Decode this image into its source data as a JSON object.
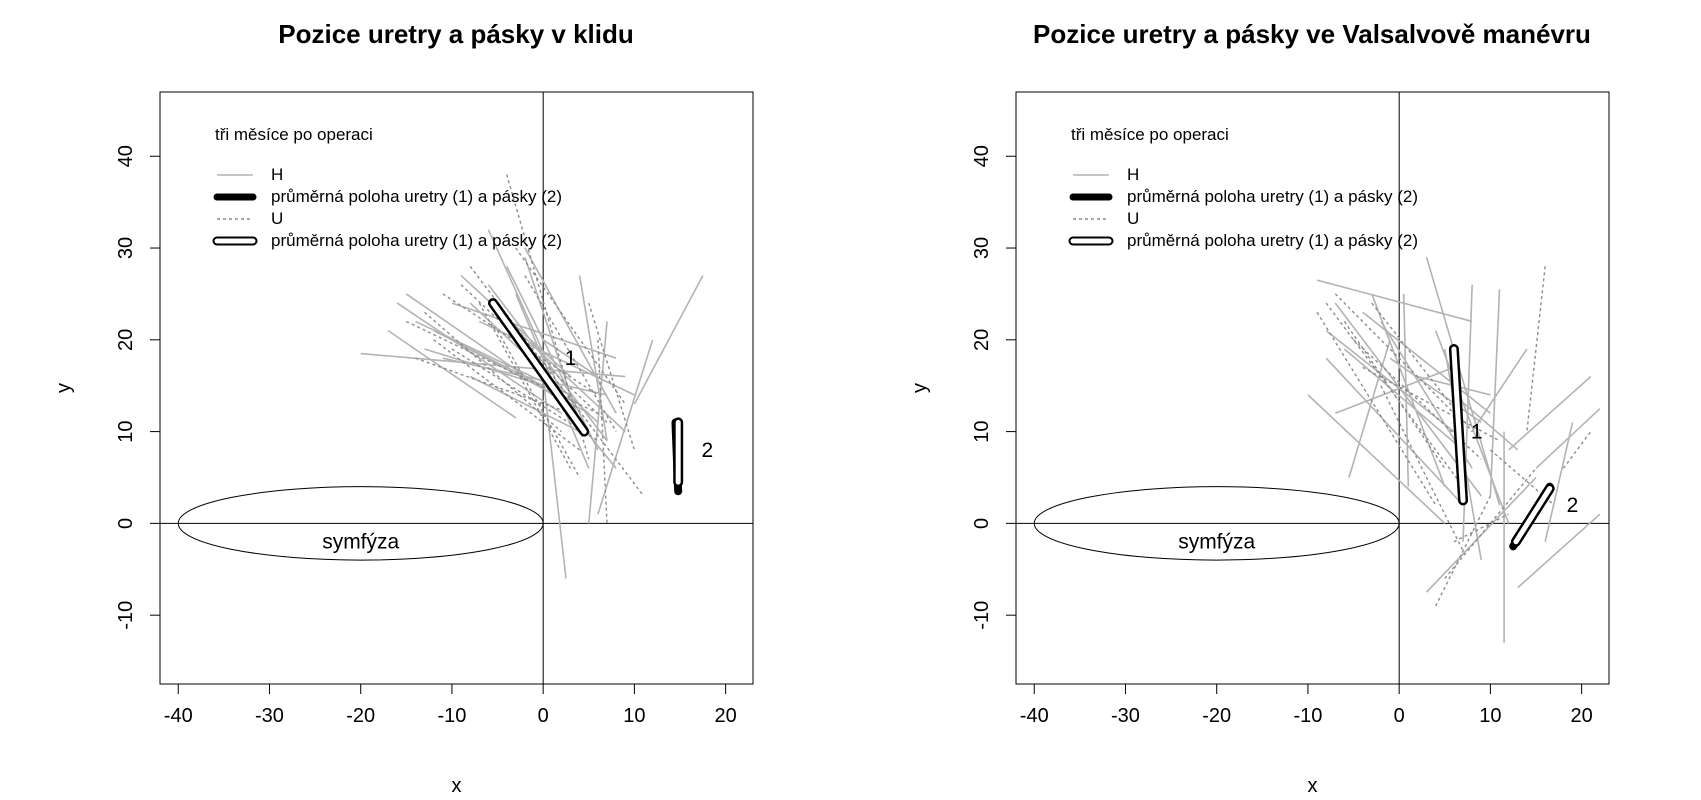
{
  "chart_data": [
    {
      "type": "line",
      "title": "Pozice uretry a pásky v klidu",
      "xlabel": "x",
      "ylabel": "y",
      "xlim": [
        -42,
        23
      ],
      "ylim": [
        -17.5,
        47
      ],
      "xticks": [
        -40,
        -30,
        -20,
        -10,
        0,
        10,
        20
      ],
      "yticks": [
        -10,
        0,
        10,
        20,
        30,
        40
      ],
      "grid": false,
      "legend": {
        "placement": "top-left",
        "header": "tři měsíce po operaci",
        "entries": [
          {
            "label": "H",
            "style": "thin-grey"
          },
          {
            "label": "průměrná poloha uretry (1) a pásky (2)",
            "style": "thick-black"
          },
          {
            "label": "U",
            "style": "dotted-grey"
          },
          {
            "label": "průměrná poloha uretry (1) a pásky (2)",
            "style": "outlined"
          }
        ]
      },
      "series": [
        {
          "name": "H",
          "style": "thin-grey",
          "segments": [
            [
              [
                -12,
                21
              ],
              [
                4,
                13
              ]
            ],
            [
              [
                -10,
                20
              ],
              [
                5,
                12
              ]
            ],
            [
              [
                -8,
                24
              ],
              [
                6,
                11
              ]
            ],
            [
              [
                -14,
                22
              ],
              [
                3,
                14
              ]
            ],
            [
              [
                -6,
                26
              ],
              [
                7,
                9
              ]
            ],
            [
              [
                -4,
                28
              ],
              [
                6,
                8
              ]
            ],
            [
              [
                -2,
                30
              ],
              [
                8,
                12
              ]
            ],
            [
              [
                -16,
                24
              ],
              [
                2,
                12
              ]
            ],
            [
              [
                -11,
                18
              ],
              [
                7,
                14
              ]
            ],
            [
              [
                -8,
                16
              ],
              [
                4,
                10
              ]
            ],
            [
              [
                -13,
                19
              ],
              [
                0,
                15
              ]
            ],
            [
              [
                -5,
                23
              ],
              [
                9,
                10
              ]
            ],
            [
              [
                -3,
                25
              ],
              [
                5,
                6
              ]
            ],
            [
              [
                -9,
                27
              ],
              [
                3,
                16
              ]
            ],
            [
              [
                -7,
                22
              ],
              [
                10,
                14
              ]
            ],
            [
              [
                -20,
                18.5
              ],
              [
                9,
                16
              ]
            ],
            [
              [
                -17,
                21
              ],
              [
                -3,
                11.5
              ]
            ],
            [
              [
                0,
                16
              ],
              [
                2.5,
                -6
              ]
            ],
            [
              [
                -1,
                17
              ],
              [
                8,
                6
              ]
            ],
            [
              [
                4,
                27
              ],
              [
                7,
                9
              ]
            ],
            [
              [
                7,
                22
              ],
              [
                5,
                0
              ]
            ],
            [
              [
                12,
                20
              ],
              [
                6,
                1
              ]
            ],
            [
              [
                17.5,
                27
              ],
              [
                10,
                13
              ]
            ],
            [
              [
                -2,
                29
              ],
              [
                4,
                11
              ]
            ],
            [
              [
                -15,
                25
              ],
              [
                1,
                14
              ]
            ],
            [
              [
                -6,
                32
              ],
              [
                3,
                12
              ]
            ],
            [
              [
                0,
                20
              ],
              [
                6,
                16
              ]
            ],
            [
              [
                -10,
                24
              ],
              [
                8,
                18
              ]
            ]
          ]
        },
        {
          "name": "U",
          "style": "dotted-grey",
          "segments": [
            [
              [
                -15,
                22
              ],
              [
                6,
                12
              ]
            ],
            [
              [
                -12,
                20
              ],
              [
                4,
                8
              ]
            ],
            [
              [
                -4,
                38
              ],
              [
                5,
                7
              ]
            ],
            [
              [
                -9,
                26
              ],
              [
                7,
                11
              ]
            ],
            [
              [
                -7,
                24
              ],
              [
                3,
                6
              ]
            ],
            [
              [
                -3,
                30
              ],
              [
                9,
                13
              ]
            ],
            [
              [
                -13,
                23
              ],
              [
                2,
                10
              ]
            ],
            [
              [
                -10,
                19
              ],
              [
                6,
                9
              ]
            ],
            [
              [
                6,
                20
              ],
              [
                7,
                0
              ]
            ],
            [
              [
                -2,
                27
              ],
              [
                8,
                10
              ]
            ],
            [
              [
                -5,
                21
              ],
              [
                4,
                5
              ]
            ],
            [
              [
                -11,
                25
              ],
              [
                6,
                14
              ]
            ],
            [
              [
                5,
                24
              ],
              [
                10,
                8
              ]
            ],
            [
              [
                -14,
                18
              ],
              [
                3,
                12
              ]
            ],
            [
              [
                -8,
                28
              ],
              [
                11,
                3
              ]
            ]
          ]
        },
        {
          "name": "H",
          "style": "thick-black",
          "segments": [
            [
              [
                -5.5,
                24
              ],
              [
                4.5,
                10
              ]
            ],
            [
              [
                14.5,
                11
              ],
              [
                14.8,
                3.5
              ]
            ]
          ]
        },
        {
          "name": "U",
          "style": "outlined",
          "segments": [
            [
              [
                -5.5,
                24
              ],
              [
                4.5,
                10
              ]
            ],
            [
              [
                14.8,
                11
              ],
              [
                14.8,
                4.5
              ]
            ]
          ]
        }
      ],
      "annotations": [
        {
          "text": "1",
          "x": 3,
          "y": 18
        },
        {
          "text": "2",
          "x": 18,
          "y": 8
        },
        {
          "text": "symfýza",
          "x": -20,
          "y": -2
        }
      ],
      "symphysis": {
        "center": [
          -20,
          0
        ],
        "rx": 20,
        "ry": 4
      }
    },
    {
      "type": "line",
      "title": "Pozice uretry a pásky ve Valsalvově manévru",
      "xlabel": "x",
      "ylabel": "y",
      "xlim": [
        -42,
        23
      ],
      "ylim": [
        -17.5,
        47
      ],
      "xticks": [
        -40,
        -30,
        -20,
        -10,
        0,
        10,
        20
      ],
      "yticks": [
        -10,
        0,
        10,
        20,
        30,
        40
      ],
      "grid": false,
      "legend": {
        "placement": "top-left",
        "header": "tři měsíce po operaci",
        "entries": [
          {
            "label": "H",
            "style": "thin-grey"
          },
          {
            "label": "průměrná poloha uretry (1) a pásky (2)",
            "style": "thick-black"
          },
          {
            "label": "U",
            "style": "dotted-grey"
          },
          {
            "label": "průměrná poloha uretry (1) a pásky (2)",
            "style": "outlined"
          }
        ]
      },
      "series": [
        {
          "name": "H",
          "style": "thin-grey",
          "segments": [
            [
              [
                -9,
                26.5
              ],
              [
                8,
                22
              ]
            ],
            [
              [
                -8,
                21
              ],
              [
                6,
                10
              ]
            ],
            [
              [
                -7,
                24
              ],
              [
                9,
                3
              ]
            ],
            [
              [
                -5.5,
                5
              ],
              [
                -1,
                20
              ]
            ],
            [
              [
                -6,
                19
              ],
              [
                7,
                8
              ]
            ],
            [
              [
                -3,
                25
              ],
              [
                5,
                4
              ]
            ],
            [
              [
                -4,
                23
              ],
              [
                10,
                12
              ]
            ],
            [
              [
                -2,
                22
              ],
              [
                8,
                6
              ]
            ],
            [
              [
                0.5,
                25
              ],
              [
                1,
                4
              ]
            ],
            [
              [
                3,
                29
              ],
              [
                11,
                2
              ]
            ],
            [
              [
                5,
                19
              ],
              [
                9,
                -4
              ]
            ],
            [
              [
                4,
                21
              ],
              [
                12,
                0
              ]
            ],
            [
              [
                8,
                26
              ],
              [
                7,
                -2
              ]
            ],
            [
              [
                11,
                25.5
              ],
              [
                10,
                3
              ]
            ],
            [
              [
                11.5,
                10
              ],
              [
                11.5,
                -13
              ]
            ],
            [
              [
                3,
                -7.5
              ],
              [
                15,
                5
              ]
            ],
            [
              [
                8,
                10
              ],
              [
                14,
                19
              ]
            ],
            [
              [
                12,
                8
              ],
              [
                21,
                16
              ]
            ],
            [
              [
                15,
                6
              ],
              [
                22,
                12.5
              ]
            ],
            [
              [
                13,
                -7
              ],
              [
                22,
                1
              ]
            ],
            [
              [
                16,
                -2
              ],
              [
                19,
                11
              ]
            ],
            [
              [
                -10,
                14
              ],
              [
                5,
                0
              ]
            ],
            [
              [
                -8,
                18
              ],
              [
                7,
                2
              ]
            ],
            [
              [
                2,
                16
              ],
              [
                10,
                14
              ]
            ],
            [
              [
                -7,
                12
              ],
              [
                6,
                17
              ]
            ],
            [
              [
                6,
                14
              ],
              [
                13,
                8
              ]
            ],
            [
              [
                -1,
                18
              ],
              [
                9,
                11
              ]
            ]
          ]
        },
        {
          "name": "U",
          "style": "dotted-grey",
          "segments": [
            [
              [
                -8,
                24
              ],
              [
                7,
                4
              ]
            ],
            [
              [
                -6,
                22
              ],
              [
                5,
                6
              ]
            ],
            [
              [
                -3,
                24
              ],
              [
                8,
                10
              ]
            ],
            [
              [
                -9,
                23
              ],
              [
                4,
                2
              ]
            ],
            [
              [
                -5,
                20
              ],
              [
                9,
                7
              ]
            ],
            [
              [
                4,
                -9
              ],
              [
                10,
                3
              ]
            ],
            [
              [
                16,
                28
              ],
              [
                14,
                10
              ]
            ],
            [
              [
                6,
                -2
              ],
              [
                12,
                1
              ]
            ],
            [
              [
                -2,
                15
              ],
              [
                7,
                -3
              ]
            ],
            [
              [
                -7,
                25
              ],
              [
                6,
                12
              ]
            ],
            [
              [
                10,
                8
              ],
              [
                17,
                2
              ]
            ],
            [
              [
                5,
                -6
              ],
              [
                15,
                6
              ]
            ],
            [
              [
                -4,
                17
              ],
              [
                11,
                9
              ]
            ],
            [
              [
                18,
                6
              ],
              [
                21,
                10
              ]
            ]
          ]
        },
        {
          "name": "H",
          "style": "thick-black",
          "segments": [
            [
              [
                6,
                19
              ],
              [
                7,
                2.5
              ]
            ],
            [
              [
                12.5,
                -2.5
              ],
              [
                16.5,
                4
              ]
            ]
          ]
        },
        {
          "name": "U",
          "style": "outlined",
          "segments": [
            [
              [
                6,
                19
              ],
              [
                7,
                2.5
              ]
            ],
            [
              [
                12.8,
                -2
              ],
              [
                16.5,
                3.8
              ]
            ]
          ]
        }
      ],
      "annotations": [
        {
          "text": "1",
          "x": 8.5,
          "y": 10
        },
        {
          "text": "2",
          "x": 19,
          "y": 2
        },
        {
          "text": "symfýza",
          "x": -20,
          "y": -2
        }
      ],
      "symphysis": {
        "center": [
          -20,
          0
        ],
        "rx": 20,
        "ry": 4
      }
    }
  ]
}
